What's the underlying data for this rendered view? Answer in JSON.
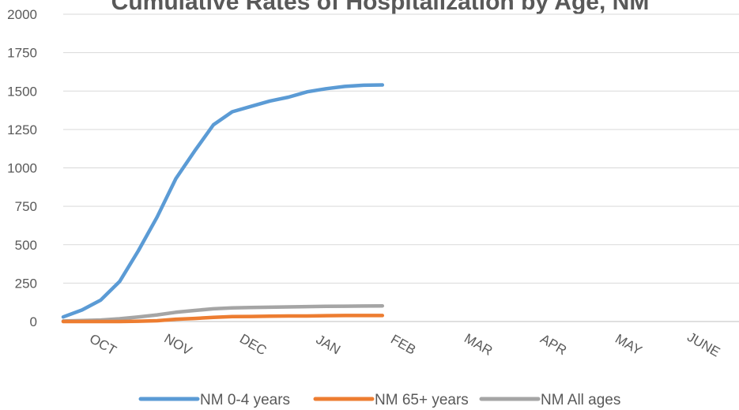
{
  "chart_data": {
    "type": "line",
    "title": "Cumulative Rates of Hospitalization by Age, NM",
    "xlabel": "",
    "ylabel": "",
    "ylim": [
      0,
      2000
    ],
    "yticks": [
      0,
      250,
      500,
      750,
      1000,
      1250,
      1500,
      1750,
      2000
    ],
    "categories": [
      "OCT",
      "NOV",
      "DEC",
      "JAN",
      "FEB",
      "MAR",
      "APR",
      "MAY",
      "JUNE"
    ],
    "grid": true,
    "legend_position": "bottom",
    "x_domain": [
      0,
      36
    ],
    "series": [
      {
        "name": "NM 0-4 years",
        "color": "#5b9bd5",
        "x": [
          0,
          1,
          2,
          3,
          4,
          5,
          6,
          7,
          8,
          9,
          10,
          11,
          12,
          13,
          14,
          15,
          16,
          17
        ],
        "values": [
          30,
          75,
          140,
          260,
          460,
          680,
          930,
          1110,
          1280,
          1365,
          1400,
          1435,
          1460,
          1495,
          1515,
          1530,
          1538,
          1540
        ]
      },
      {
        "name": "NM 65+ years",
        "color": "#ed7d31",
        "x": [
          0,
          1,
          2,
          3,
          4,
          5,
          6,
          7,
          8,
          9,
          10,
          11,
          12,
          13,
          14,
          15,
          16,
          17
        ],
        "values": [
          0,
          0,
          0,
          0,
          2,
          5,
          15,
          20,
          27,
          32,
          33,
          35,
          36,
          36,
          38,
          39,
          39,
          39
        ]
      },
      {
        "name": "NM All ages",
        "color": "#a5a5a5",
        "x": [
          0,
          1,
          2,
          3,
          4,
          5,
          6,
          7,
          8,
          9,
          10,
          11,
          12,
          13,
          14,
          15,
          16,
          17
        ],
        "values": [
          3,
          6,
          10,
          18,
          30,
          43,
          60,
          72,
          83,
          89,
          91,
          93,
          95,
          97,
          99,
          100,
          101,
          102
        ]
      }
    ]
  }
}
